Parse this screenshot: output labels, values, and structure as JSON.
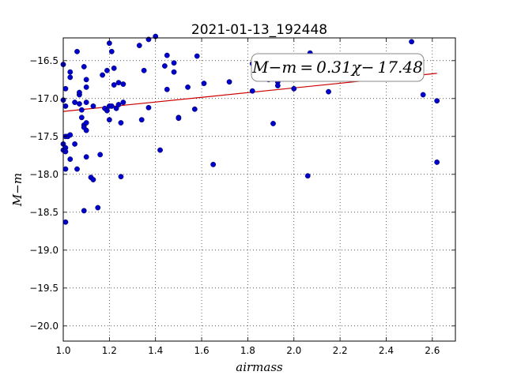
{
  "chart_data": {
    "type": "scatter",
    "title": "2021-01-13_192448",
    "xlabel": "airmass",
    "ylabel": "M−m",
    "xlim": [
      1.0,
      2.7
    ],
    "ylim": [
      -20.2,
      -16.2
    ],
    "xticks": [
      1.0,
      1.2,
      1.4,
      1.6,
      1.8,
      2.0,
      2.2,
      2.4,
      2.6
    ],
    "xtick_labels": [
      "1.0",
      "1.2",
      "1.4",
      "1.6",
      "1.8",
      "2.0",
      "2.2",
      "2.4",
      "2.6"
    ],
    "yticks": [
      -16.5,
      -17.0,
      -17.5,
      -18.0,
      -18.5,
      -19.0,
      -19.5,
      -20.0
    ],
    "ytick_labels": [
      "−16.5",
      "−17.0",
      "−17.5",
      "−18.0",
      "−18.5",
      "−19.0",
      "−19.5",
      "−20.0"
    ],
    "grid": true,
    "marker_color": "#0000cc",
    "fit_line_color": "#cc0000",
    "fit": {
      "slope": 0.31,
      "intercept": -17.48,
      "x_range": [
        1.0,
        2.62
      ]
    },
    "annotation": "M−m = 0.31χ− 17.48",
    "points": [
      {
        "x": 1.0,
        "y": -16.55
      },
      {
        "x": 1.0,
        "y": -17.02
      },
      {
        "x": 1.0,
        "y": -17.6
      },
      {
        "x": 1.0,
        "y": -17.68
      },
      {
        "x": 1.01,
        "y": -17.1
      },
      {
        "x": 1.01,
        "y": -17.65
      },
      {
        "x": 1.01,
        "y": -17.7
      },
      {
        "x": 1.01,
        "y": -17.5
      },
      {
        "x": 1.01,
        "y": -16.87
      },
      {
        "x": 1.01,
        "y": -17.93
      },
      {
        "x": 1.01,
        "y": -18.63
      },
      {
        "x": 1.02,
        "y": -17.5
      },
      {
        "x": 1.03,
        "y": -16.65
      },
      {
        "x": 1.03,
        "y": -16.72
      },
      {
        "x": 1.03,
        "y": -17.48
      },
      {
        "x": 1.03,
        "y": -17.8
      },
      {
        "x": 1.05,
        "y": -17.6
      },
      {
        "x": 1.05,
        "y": -17.05
      },
      {
        "x": 1.06,
        "y": -16.38
      },
      {
        "x": 1.06,
        "y": -17.93
      },
      {
        "x": 1.07,
        "y": -16.95
      },
      {
        "x": 1.07,
        "y": -16.92
      },
      {
        "x": 1.07,
        "y": -17.07
      },
      {
        "x": 1.08,
        "y": -17.15
      },
      {
        "x": 1.08,
        "y": -17.25
      },
      {
        "x": 1.09,
        "y": -16.58
      },
      {
        "x": 1.09,
        "y": -17.35
      },
      {
        "x": 1.09,
        "y": -17.38
      },
      {
        "x": 1.09,
        "y": -18.48
      },
      {
        "x": 1.1,
        "y": -16.75
      },
      {
        "x": 1.1,
        "y": -16.85
      },
      {
        "x": 1.1,
        "y": -17.05
      },
      {
        "x": 1.1,
        "y": -17.32
      },
      {
        "x": 1.1,
        "y": -17.42
      },
      {
        "x": 1.1,
        "y": -17.77
      },
      {
        "x": 1.12,
        "y": -18.04
      },
      {
        "x": 1.13,
        "y": -17.1
      },
      {
        "x": 1.13,
        "y": -18.07
      },
      {
        "x": 1.15,
        "y": -18.44
      },
      {
        "x": 1.16,
        "y": -17.74
      },
      {
        "x": 1.17,
        "y": -16.69
      },
      {
        "x": 1.18,
        "y": -17.13
      },
      {
        "x": 1.19,
        "y": -17.16
      },
      {
        "x": 1.19,
        "y": -16.63
      },
      {
        "x": 1.2,
        "y": -16.27
      },
      {
        "x": 1.2,
        "y": -17.1
      },
      {
        "x": 1.2,
        "y": -17.28
      },
      {
        "x": 1.21,
        "y": -16.38
      },
      {
        "x": 1.21,
        "y": -17.1
      },
      {
        "x": 1.22,
        "y": -16.82
      },
      {
        "x": 1.22,
        "y": -16.6
      },
      {
        "x": 1.23,
        "y": -17.13
      },
      {
        "x": 1.24,
        "y": -16.79
      },
      {
        "x": 1.24,
        "y": -17.08
      },
      {
        "x": 1.25,
        "y": -17.32
      },
      {
        "x": 1.25,
        "y": -18.03
      },
      {
        "x": 1.26,
        "y": -16.81
      },
      {
        "x": 1.26,
        "y": -17.05
      },
      {
        "x": 1.33,
        "y": -16.3
      },
      {
        "x": 1.34,
        "y": -17.28
      },
      {
        "x": 1.35,
        "y": -16.63
      },
      {
        "x": 1.37,
        "y": -17.12
      },
      {
        "x": 1.37,
        "y": -16.22
      },
      {
        "x": 1.4,
        "y": -16.18
      },
      {
        "x": 1.42,
        "y": -17.68
      },
      {
        "x": 1.44,
        "y": -16.57
      },
      {
        "x": 1.45,
        "y": -16.43
      },
      {
        "x": 1.45,
        "y": -16.88
      },
      {
        "x": 1.48,
        "y": -16.53
      },
      {
        "x": 1.48,
        "y": -16.65
      },
      {
        "x": 1.5,
        "y": -17.25
      },
      {
        "x": 1.5,
        "y": -17.26
      },
      {
        "x": 1.54,
        "y": -16.85
      },
      {
        "x": 1.57,
        "y": -17.14
      },
      {
        "x": 1.58,
        "y": -16.44
      },
      {
        "x": 1.61,
        "y": -16.8
      },
      {
        "x": 1.65,
        "y": -17.87
      },
      {
        "x": 1.72,
        "y": -16.78
      },
      {
        "x": 1.82,
        "y": -16.54
      },
      {
        "x": 1.82,
        "y": -16.9
      },
      {
        "x": 1.84,
        "y": -16.55
      },
      {
        "x": 1.89,
        "y": -16.75
      },
      {
        "x": 1.91,
        "y": -17.33
      },
      {
        "x": 1.93,
        "y": -16.78
      },
      {
        "x": 1.93,
        "y": -16.83
      },
      {
        "x": 2.0,
        "y": -16.87
      },
      {
        "x": 2.06,
        "y": -18.02
      },
      {
        "x": 2.07,
        "y": -16.4
      },
      {
        "x": 2.15,
        "y": -16.91
      },
      {
        "x": 2.51,
        "y": -16.25
      },
      {
        "x": 2.56,
        "y": -16.95
      },
      {
        "x": 2.62,
        "y": -17.03
      },
      {
        "x": 2.62,
        "y": -17.84
      }
    ]
  }
}
